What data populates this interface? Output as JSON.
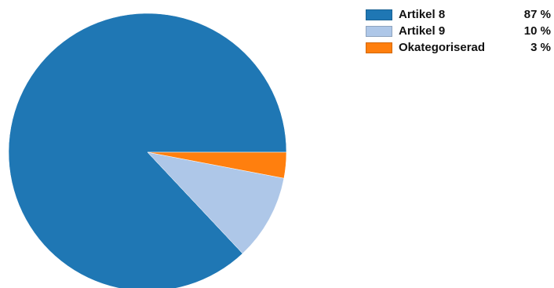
{
  "chart_data": {
    "type": "pie",
    "categories": [
      "Artikel 8",
      "Artikel 9",
      "Okategoriserad"
    ],
    "values": [
      87,
      10,
      3
    ],
    "value_labels": [
      "87 %",
      "10 %",
      "3 %"
    ],
    "colors": [
      "#1f77b4",
      "#aec7e8",
      "#ff7f0e"
    ],
    "legend_position": "top-right"
  }
}
